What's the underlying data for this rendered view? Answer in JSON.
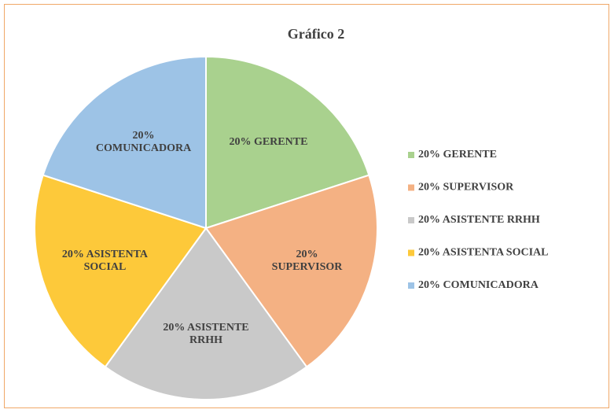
{
  "chart_data": {
    "type": "pie",
    "title": "Gráfico 2",
    "categories": [
      "20% GERENTE",
      "20% SUPERVISOR",
      "20% ASISTENTE RRHH",
      "20% ASISTENTA SOCIAL",
      "20% COMUNICADORA"
    ],
    "values": [
      20,
      20,
      20,
      20,
      20
    ],
    "colors": [
      "#a9d18e",
      "#f4b183",
      "#c9c9c9",
      "#fdc93a",
      "#9dc3e6"
    ],
    "legend": "right"
  }
}
